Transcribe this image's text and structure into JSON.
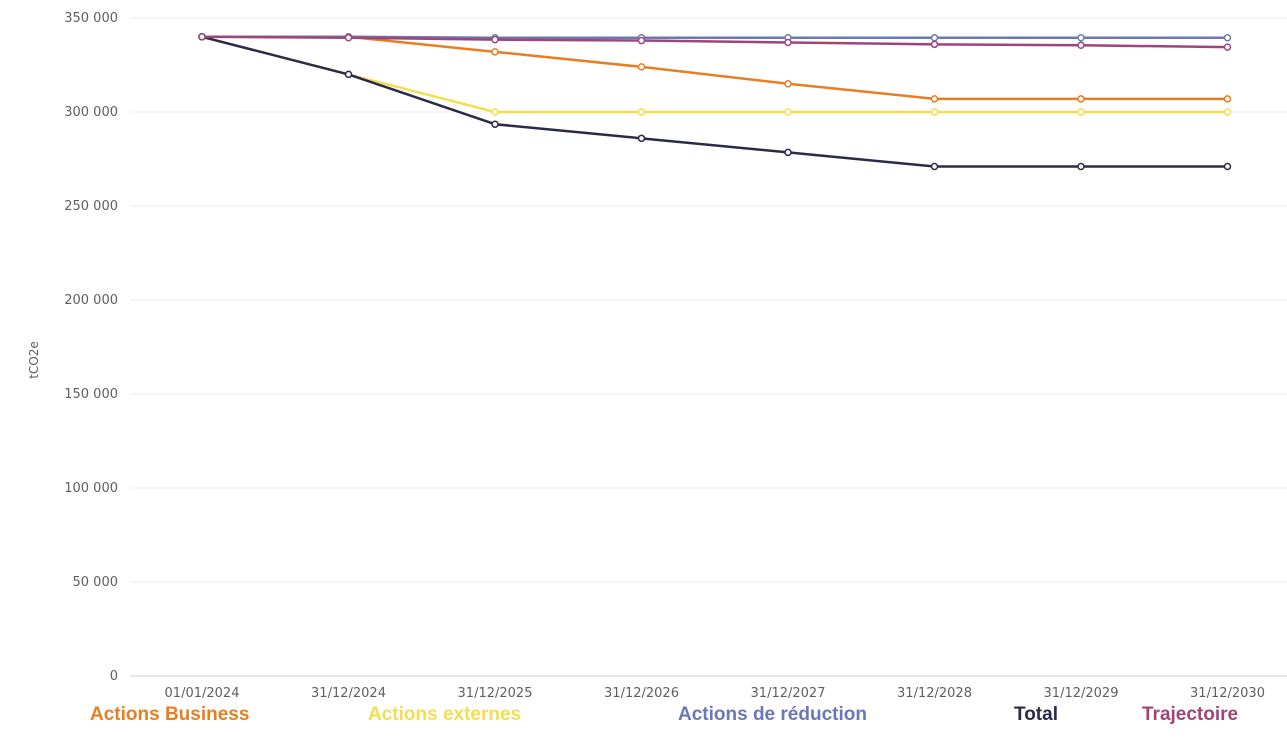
{
  "chart_data": {
    "type": "line",
    "title": "",
    "xlabel": "",
    "ylabel": "tCO2e",
    "ylim": [
      0,
      350000
    ],
    "yticks": [
      0,
      50000,
      100000,
      150000,
      200000,
      250000,
      300000,
      350000
    ],
    "ytick_labels": [
      "0",
      "50 000",
      "100 000",
      "150 000",
      "200 000",
      "250 000",
      "300 000",
      "350 000"
    ],
    "categories": [
      "01/01/2024",
      "31/12/2024",
      "31/12/2025",
      "31/12/2026",
      "31/12/2027",
      "31/12/2028",
      "31/12/2029",
      "31/12/2030"
    ],
    "grid": "horizontal",
    "legend_position": "bottom",
    "series": [
      {
        "name": "Actions Business",
        "color": "#e67e22",
        "values": [
          340000,
          340000,
          332000,
          324000,
          315000,
          307000,
          307000,
          307000
        ]
      },
      {
        "name": "Actions externes",
        "color": "#f5dd50",
        "values": [
          340000,
          320000,
          300000,
          300000,
          300000,
          300000,
          300000,
          300000
        ]
      },
      {
        "name": "Actions de réduction",
        "color": "#6b78b5",
        "values": [
          340000,
          340000,
          339500,
          339500,
          339500,
          339500,
          339500,
          339500
        ]
      },
      {
        "name": "Total",
        "color": "#2a2a4a",
        "values": [
          340000,
          320000,
          293500,
          286000,
          278500,
          271000,
          271000,
          271000
        ]
      },
      {
        "name": "Trajectoire",
        "color": "#a0457a",
        "values": [
          340000,
          339500,
          338500,
          338000,
          337000,
          336000,
          335500,
          334500
        ]
      }
    ]
  }
}
